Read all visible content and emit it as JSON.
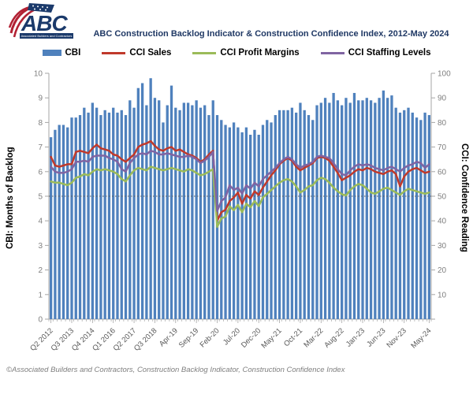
{
  "header": {
    "logo_text": "ABC",
    "logo_tagline": "Associated Builders and Contractors",
    "title": "ABC Construction Backlog Indicator & Construction Confidence Index, 2012-May 2024"
  },
  "legend": [
    {
      "label": "CBI",
      "color": "#4F81BD",
      "type": "bar"
    },
    {
      "label": "CCI Sales",
      "color": "#C0392B",
      "type": "line"
    },
    {
      "label": "CCI Profit Margins",
      "color": "#9BBB59",
      "type": "line"
    },
    {
      "label": "CCI Staffing Levels",
      "color": "#8064A2",
      "type": "line"
    }
  ],
  "footer": "©Associated Builders and Contractors, Construction Backlog Indicator, Construction Confidence Index",
  "chart_data": {
    "type": "bar+line",
    "n_points": 92,
    "left_axis": {
      "label": "CBI: Months of Backlog",
      "min": 0,
      "max": 10,
      "tick_step": 1
    },
    "right_axis": {
      "label": "CCI: Confidence Reading",
      "min": 0,
      "max": 100,
      "tick_step": 10
    },
    "reference_line": {
      "axis": "right",
      "value": 50,
      "style": "dotted"
    },
    "x_tick_labels": [
      {
        "index": 0,
        "label": "Q2 2012"
      },
      {
        "index": 5,
        "label": "Q3 2013"
      },
      {
        "index": 10,
        "label": "Q4 2014"
      },
      {
        "index": 15,
        "label": "Q1 2016"
      },
      {
        "index": 20,
        "label": "Q2 2017"
      },
      {
        "index": 25,
        "label": "Q3 2018"
      },
      {
        "index": 30,
        "label": "Apr-19"
      },
      {
        "index": 35,
        "label": "Sep-19"
      },
      {
        "index": 40,
        "label": "Feb-20"
      },
      {
        "index": 45,
        "label": "Jul-20"
      },
      {
        "index": 50,
        "label": "Dec-20"
      },
      {
        "index": 55,
        "label": "May-21"
      },
      {
        "index": 60,
        "label": "Oct-21"
      },
      {
        "index": 65,
        "label": "Mar-22"
      },
      {
        "index": 70,
        "label": "Aug-22"
      },
      {
        "index": 75,
        "label": "Jan-23"
      },
      {
        "index": 80,
        "label": "Jun-23"
      },
      {
        "index": 85,
        "label": "Nov-23"
      },
      {
        "index": 91,
        "label": "May-24"
      }
    ],
    "series": [
      {
        "name": "CBI",
        "type": "bar",
        "axis": "left",
        "color": "#4F81BD",
        "values": [
          7.4,
          7.7,
          7.9,
          7.9,
          7.8,
          8.2,
          8.2,
          8.3,
          8.6,
          8.4,
          8.8,
          8.6,
          8.3,
          8.5,
          8.4,
          8.6,
          8.4,
          8.5,
          8.3,
          8.9,
          8.6,
          9.4,
          9.6,
          8.7,
          9.8,
          9.0,
          8.9,
          8.0,
          8.7,
          9.5,
          8.6,
          8.5,
          8.8,
          8.8,
          8.7,
          8.9,
          8.6,
          8.7,
          8.3,
          8.9,
          8.3,
          8.1,
          7.9,
          7.8,
          8.0,
          7.8,
          7.6,
          7.8,
          7.5,
          7.7,
          7.5,
          7.9,
          8.1,
          8.0,
          8.3,
          8.5,
          8.5,
          8.5,
          8.6,
          8.4,
          8.8,
          8.5,
          8.3,
          8.1,
          8.7,
          8.8,
          9.0,
          8.8,
          9.2,
          8.9,
          8.7,
          9.0,
          8.8,
          9.2,
          8.9,
          8.9,
          9.0,
          8.9,
          8.8,
          9.0,
          9.3,
          9.0,
          9.1,
          8.6,
          8.4,
          8.5,
          8.6,
          8.4,
          8.2,
          8.1,
          8.4,
          8.3
        ]
      },
      {
        "name": "CCI Sales",
        "type": "line",
        "axis": "right",
        "color": "#C0392B",
        "values": [
          66,
          62.5,
          62,
          62.5,
          63,
          63,
          68,
          68.5,
          68,
          67.5,
          69.5,
          71,
          69.5,
          69,
          68.5,
          67,
          66.5,
          65,
          64,
          65.5,
          67,
          70,
          71,
          71.5,
          72.4,
          70.5,
          69,
          68.5,
          69.5,
          70,
          68.5,
          69,
          68,
          67,
          66.5,
          65.5,
          64,
          65,
          67,
          68.5,
          40,
          43.5,
          44.5,
          48,
          49.5,
          51.5,
          47,
          50.5,
          49,
          52,
          50.5,
          53.5,
          56,
          58.5,
          60.5,
          63,
          64.5,
          65.5,
          64.5,
          62,
          60.5,
          61.5,
          62.5,
          63.5,
          65.5,
          66,
          65.5,
          64.5,
          62,
          59.5,
          56.5,
          57.5,
          58.5,
          60,
          61,
          60.5,
          61.5,
          61,
          60,
          59.5,
          59,
          60,
          60.5,
          59,
          54,
          58,
          60,
          61,
          61.5,
          60.5,
          59.5,
          60
        ]
      },
      {
        "name": "CCI Profit Margins",
        "type": "line",
        "axis": "right",
        "color": "#9BBB59",
        "values": [
          56,
          55.5,
          55.5,
          55,
          54.5,
          55.5,
          57.5,
          58,
          59,
          58.5,
          60,
          61,
          60.5,
          61,
          60.5,
          60,
          59,
          57,
          56,
          58.5,
          60.5,
          61.5,
          61,
          60.5,
          62,
          61.5,
          61,
          60.5,
          61,
          61.5,
          61,
          60.5,
          60,
          61,
          60.5,
          59.5,
          58.5,
          59,
          60,
          61,
          37.5,
          41,
          41.7,
          45.9,
          44.3,
          46.5,
          43.5,
          47,
          45.5,
          48,
          46,
          49.5,
          51,
          52.5,
          54,
          55.5,
          56.5,
          57,
          56,
          54,
          51.5,
          52.5,
          54,
          54.5,
          56.5,
          57.5,
          57,
          55.5,
          53.5,
          52,
          50.8,
          50.3,
          52.5,
          54,
          55,
          54.5,
          53,
          51.5,
          51,
          52,
          53,
          53.5,
          52.5,
          51.5,
          50.5,
          52,
          53,
          52.5,
          52,
          51.5,
          51,
          51.5
        ]
      },
      {
        "name": "CCI Staffing Levels",
        "type": "line",
        "axis": "right",
        "color": "#8064A2",
        "values": [
          62,
          60,
          59.5,
          59.5,
          60,
          61,
          64,
          64,
          64.5,
          64,
          66,
          66.5,
          66.5,
          66.5,
          65.5,
          65,
          64,
          61,
          60,
          63.5,
          65.5,
          67,
          67.5,
          67,
          68.5,
          68,
          67,
          67,
          67.5,
          67,
          66.5,
          66,
          66,
          66.5,
          66,
          65,
          63.5,
          64.5,
          66,
          68,
          44,
          48,
          49.5,
          54.5,
          52.5,
          53.5,
          51,
          54.5,
          53,
          55.5,
          54,
          57,
          58.5,
          60,
          61.5,
          63.5,
          65,
          66,
          65,
          63,
          61.5,
          62.5,
          63,
          64,
          66,
          66.5,
          66,
          65.5,
          63.5,
          61,
          59,
          58.5,
          60.5,
          62,
          63,
          62.5,
          63,
          62.5,
          61.5,
          61,
          60.5,
          61.5,
          62,
          61,
          60,
          61.5,
          62.5,
          63,
          64,
          63.5,
          61.5,
          63
        ]
      }
    ]
  }
}
